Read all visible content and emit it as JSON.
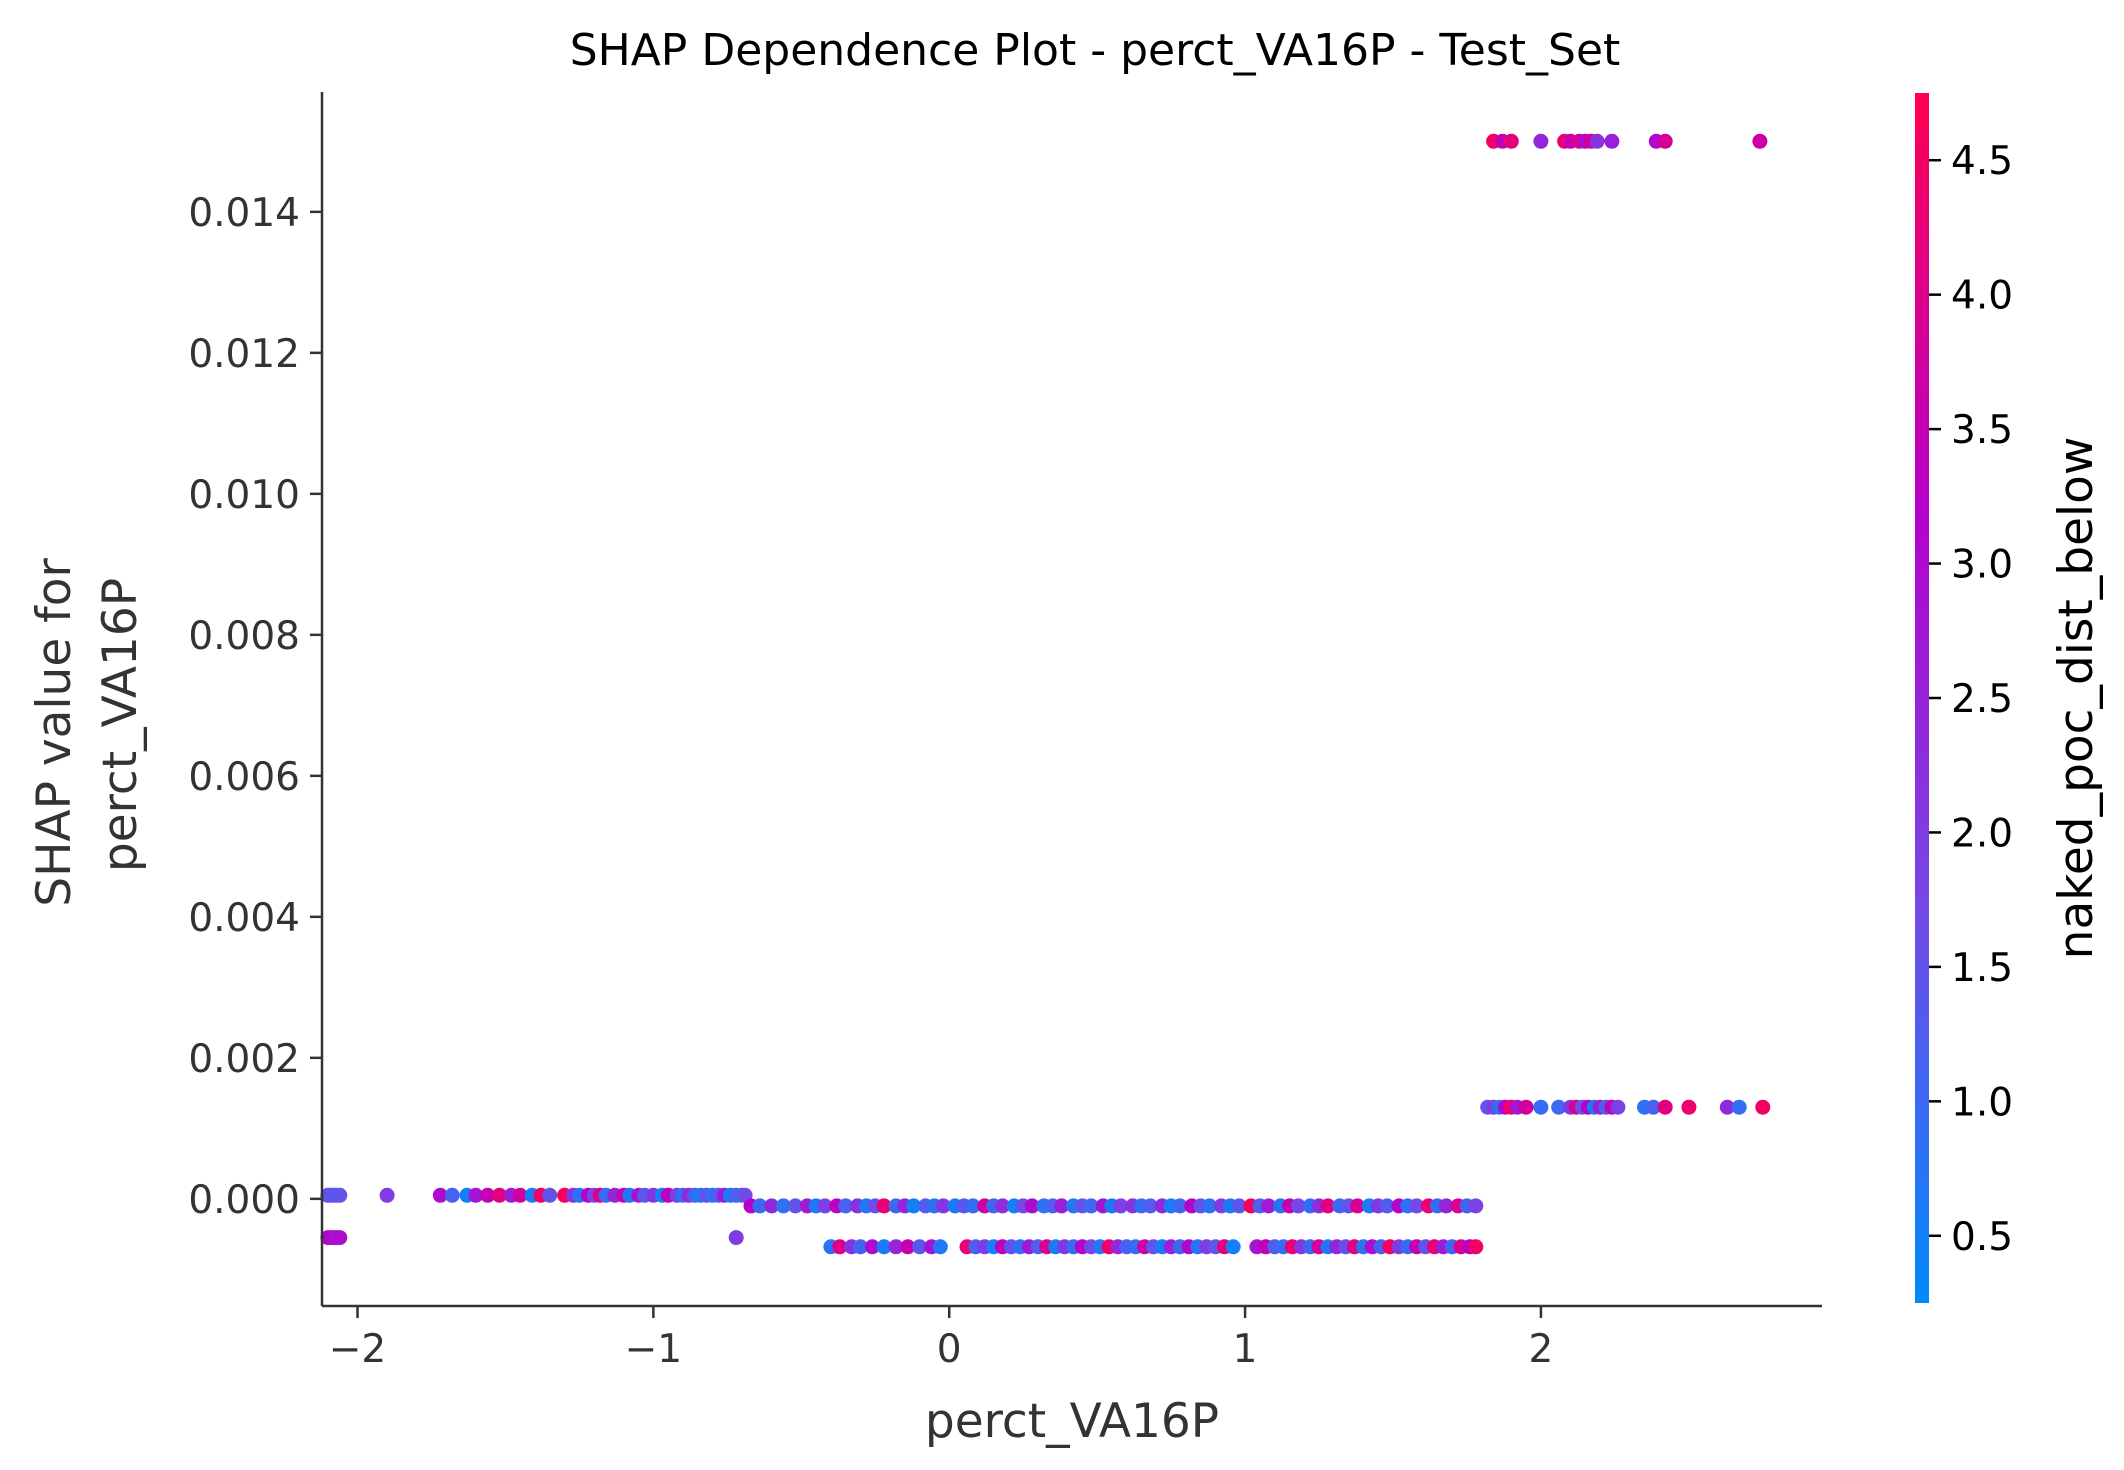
{
  "chart_data": {
    "type": "scatter",
    "title": "SHAP Dependence Plot - perct_VA16P - Test_Set",
    "xlabel": "perct_VA16P",
    "ylabel_lines": [
      "SHAP value for",
      "perct_VA16P"
    ],
    "xlim": [
      -2.12,
      2.95
    ],
    "ylim": [
      -0.00152,
      0.0157
    ],
    "x_ticks": [
      {
        "value": -2,
        "label": "−2"
      },
      {
        "value": -1,
        "label": "−1"
      },
      {
        "value": 0,
        "label": "0"
      },
      {
        "value": 1,
        "label": "1"
      },
      {
        "value": 2,
        "label": "2"
      }
    ],
    "y_ticks": [
      {
        "value": 0.0,
        "label": "0.000"
      },
      {
        "value": 0.002,
        "label": "0.002"
      },
      {
        "value": 0.004,
        "label": "0.004"
      },
      {
        "value": 0.006,
        "label": "0.006"
      },
      {
        "value": 0.008,
        "label": "0.008"
      },
      {
        "value": 0.01,
        "label": "0.010"
      },
      {
        "value": 0.012,
        "label": "0.012"
      },
      {
        "value": 0.014,
        "label": "0.014"
      }
    ],
    "grid": false,
    "colorbar": {
      "label": "naked_poc_dist_below",
      "range": [
        0.25,
        4.75
      ],
      "colors": [
        "#008afb",
        "#7548e8",
        "#b600c9",
        "#ff0050"
      ],
      "ticks": [
        {
          "value": 0.5,
          "label": "0.5"
        },
        {
          "value": 1.0,
          "label": "1.0"
        },
        {
          "value": 1.5,
          "label": "1.5"
        },
        {
          "value": 2.0,
          "label": "2.0"
        },
        {
          "value": 2.5,
          "label": "2.5"
        },
        {
          "value": 3.0,
          "label": "3.0"
        },
        {
          "value": 3.5,
          "label": "3.5"
        },
        {
          "value": 4.0,
          "label": "4.0"
        },
        {
          "value": 4.5,
          "label": "4.5"
        }
      ]
    },
    "clusters": [
      {
        "y": 5e-05,
        "x": [
          -2.1,
          -2.09,
          -2.08,
          -2.07,
          -2.06
        ],
        "c": [
          1.5,
          1.4,
          1.6,
          1.3,
          1.5
        ]
      },
      {
        "y": -0.00055,
        "x": [
          -2.1,
          -2.09,
          -2.08,
          -2.07,
          -2.06
        ],
        "c": [
          3.0,
          3.2,
          3.1,
          2.9,
          3.0
        ]
      },
      {
        "y": 5e-05,
        "x": [
          -1.9,
          -1.72,
          -1.68,
          -1.63,
          -1.6,
          -1.56,
          -1.52,
          -1.48,
          -1.45,
          -1.41,
          -1.38,
          -1.35,
          -1.3,
          -1.27,
          -1.25,
          -1.22,
          -1.2,
          -1.18,
          -1.16,
          -1.13,
          -1.1,
          -1.08,
          -1.05,
          -1.03,
          -1.0,
          -0.97,
          -0.95,
          -0.92,
          -0.9,
          -0.88,
          -0.86,
          -0.84,
          -0.82,
          -0.8,
          -0.78,
          -0.76,
          -0.74,
          -0.72,
          -0.7,
          -0.69
        ],
        "c": [
          2.0,
          3.0,
          1.2,
          0.5,
          2.8,
          3.5,
          4.2,
          2.6,
          3.8,
          0.6,
          4.5,
          1.5,
          4.6,
          2.2,
          0.8,
          3.2,
          1.8,
          4.1,
          1.0,
          2.5,
          3.6,
          0.7,
          2.9,
          1.4,
          2.1,
          0.5,
          3.4,
          1.9,
          0.9,
          2.4,
          1.1,
          0.6,
          1.6,
          0.8,
          1.3,
          2.7,
          0.5,
          1.2,
          1.0,
          1.7
        ]
      },
      {
        "y": -0.00055,
        "x": [
          -0.72
        ],
        "c": [
          2.0
        ]
      },
      {
        "y": -0.0001,
        "x": [
          -0.67,
          -0.64,
          -0.6,
          -0.56,
          -0.52,
          -0.48,
          -0.45,
          -0.42,
          -0.38,
          -0.35,
          -0.31,
          -0.28,
          -0.25,
          -0.22,
          -0.18,
          -0.15,
          -0.12,
          -0.08,
          -0.05,
          -0.02,
          0.02,
          0.05,
          0.08,
          0.12,
          0.15,
          0.18,
          0.22,
          0.25,
          0.28,
          0.32,
          0.35,
          0.38,
          0.42,
          0.45,
          0.48,
          0.52,
          0.55,
          0.58,
          0.62,
          0.65,
          0.68,
          0.72,
          0.75,
          0.78,
          0.82,
          0.85,
          0.88,
          0.92,
          0.95,
          0.98,
          1.02,
          1.05,
          1.08,
          1.12,
          1.15,
          1.18,
          1.22,
          1.25,
          1.28,
          1.32,
          1.35,
          1.38,
          1.42,
          1.45,
          1.48,
          1.52,
          1.55,
          1.58,
          1.62,
          1.65,
          1.68,
          1.72,
          1.75,
          1.78
        ],
        "c": [
          3.2,
          1.0,
          2.4,
          0.8,
          1.5,
          2.7,
          0.6,
          1.9,
          3.4,
          1.2,
          2.2,
          0.7,
          1.6,
          4.3,
          1.0,
          2.5,
          0.5,
          1.3,
          0.8,
          2.1,
          0.6,
          1.4,
          0.9,
          3.8,
          1.1,
          2.3,
          0.5,
          1.7,
          3.0,
          0.8,
          1.2,
          2.6,
          0.7,
          1.5,
          1.0,
          2.8,
          0.6,
          1.9,
          2.2,
          0.9,
          1.3,
          2.4,
          0.5,
          1.1,
          3.3,
          1.6,
          0.8,
          2.0,
          0.6,
          1.4,
          4.6,
          1.2,
          2.7,
          0.7,
          3.6,
          1.8,
          0.9,
          2.3,
          4.2,
          1.0,
          1.5,
          3.9,
          0.6,
          2.1,
          1.3,
          3.1,
          0.8,
          1.7,
          4.4,
          0.9,
          2.5,
          4.0,
          1.1,
          1.9
        ]
      },
      {
        "y": -0.00068,
        "x": [
          -0.4,
          -0.37,
          -0.33,
          -0.3,
          -0.26,
          -0.22,
          -0.18,
          -0.14,
          -0.1,
          -0.06,
          -0.03,
          0.06,
          0.09,
          0.12,
          0.15,
          0.18,
          0.21,
          0.24,
          0.27,
          0.3,
          0.33,
          0.36,
          0.39,
          0.42,
          0.45,
          0.48,
          0.51,
          0.54,
          0.57,
          0.6,
          0.63,
          0.66,
          0.69,
          0.72,
          0.75,
          0.78,
          0.81,
          0.84,
          0.87,
          0.9,
          0.93,
          0.96,
          1.04,
          1.07,
          1.1,
          1.13,
          1.16,
          1.19,
          1.22,
          1.25,
          1.28,
          1.31,
          1.34,
          1.37,
          1.4,
          1.43,
          1.46,
          1.49,
          1.52,
          1.55,
          1.58,
          1.61,
          1.64,
          1.67,
          1.7,
          1.73,
          1.76,
          1.78
        ],
        "c": [
          0.8,
          4.1,
          2.2,
          1.1,
          3.0,
          0.6,
          2.5,
          3.6,
          1.4,
          2.9,
          0.7,
          4.3,
          1.2,
          2.0,
          0.5,
          3.4,
          1.6,
          0.9,
          2.7,
          1.3,
          4.0,
          0.6,
          2.1,
          1.0,
          3.2,
          1.8,
          0.7,
          4.5,
          2.4,
          1.2,
          0.9,
          3.7,
          1.5,
          0.6,
          2.6,
          1.1,
          3.1,
          0.8,
          2.0,
          1.4,
          4.2,
          0.5,
          2.8,
          3.5,
          1.3,
          0.9,
          4.4,
          2.2,
          1.0,
          3.9,
          0.7,
          2.5,
          1.6,
          4.1,
          0.8,
          3.0,
          1.2,
          4.6,
          2.0,
          0.9,
          3.6,
          1.5,
          4.3,
          2.7,
          1.1,
          4.0,
          3.3,
          4.5
        ]
      },
      {
        "y": 0.0013,
        "x": [
          1.82,
          1.84,
          1.86,
          1.88,
          1.9,
          1.92,
          1.95,
          2.0,
          2.06,
          2.1,
          2.12,
          2.14,
          2.16,
          2.18,
          2.2,
          2.22,
          2.24,
          2.26,
          2.35,
          2.38,
          2.42,
          2.5,
          2.63,
          2.67,
          2.75
        ],
        "c": [
          1.5,
          2.0,
          0.8,
          3.1,
          4.5,
          2.8,
          3.8,
          0.9,
          1.0,
          2.1,
          4.0,
          1.5,
          3.3,
          0.7,
          2.6,
          1.2,
          3.5,
          1.9,
          0.8,
          1.2,
          4.1,
          4.4,
          2.4,
          0.9,
          4.5
        ]
      },
      {
        "y": 0.015,
        "x": [
          1.84,
          1.87,
          1.9,
          2.0,
          2.08,
          2.1,
          2.13,
          2.15,
          2.17,
          2.19,
          2.24,
          2.39,
          2.42,
          2.74
        ],
        "c": [
          4.5,
          3.5,
          4.2,
          2.4,
          4.4,
          3.6,
          4.0,
          3.0,
          3.8,
          2.2,
          2.6,
          3.1,
          3.9,
          3.7
        ]
      }
    ]
  }
}
